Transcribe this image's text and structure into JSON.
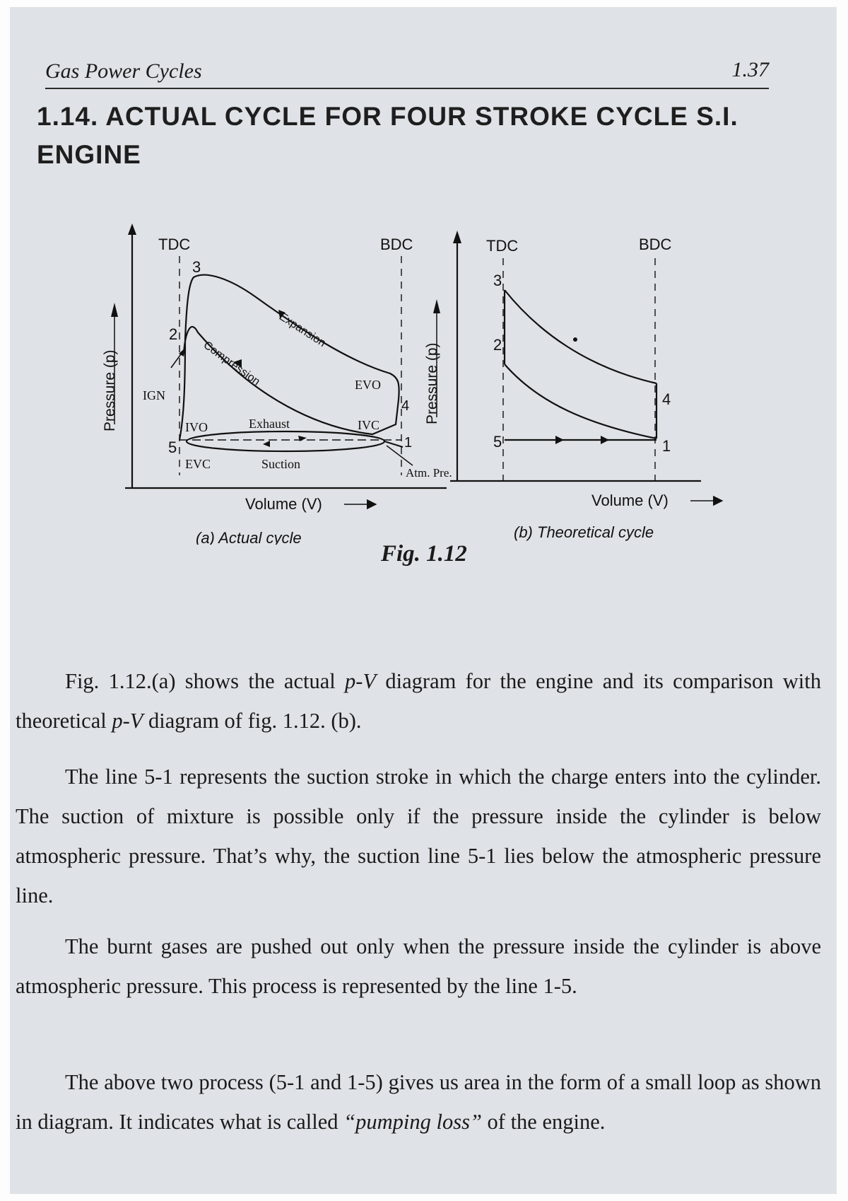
{
  "header": {
    "running_title": "Gas Power Cycles",
    "page_number": "1.37"
  },
  "section": {
    "number": "1.14.",
    "title": "ACTUAL CYCLE FOR FOUR STROKE CYCLE S.I. ENGINE"
  },
  "figure": {
    "caption": "Fig. 1.12",
    "actual": {
      "subcaption": "(a) Actual cycle",
      "y_label": "Pressure (p)",
      "x_label": "Volume (V)",
      "tdc": "TDC",
      "bdc": "BDC",
      "points": {
        "p1": "1",
        "p2": "2",
        "p3": "3",
        "p4": "4",
        "p5": "5"
      },
      "labels": {
        "expansion": "Expansion",
        "compression": "Compression",
        "exhaust": "Exhaust",
        "suction": "Suction",
        "ign": "IGN",
        "ivo": "IVO",
        "evc": "EVC",
        "evo": "EVO",
        "ivc": "IVC",
        "atm": "Atm. Pre."
      }
    },
    "theoretical": {
      "subcaption": "(b) Theoretical cycle",
      "y_label": "Pressure (p)",
      "x_label": "Volume (V)",
      "tdc": "TDC",
      "bdc": "BDC",
      "points": {
        "p1": "1",
        "p2": "2",
        "p3": "3",
        "p4": "4",
        "p5": "5"
      }
    }
  },
  "body": {
    "p1_a": "Fig. 1.12.(a) shows the actual ",
    "p1_b": "p-V",
    "p1_c": " diagram for the engine and its comparison with theoretical ",
    "p1_d": "p-V",
    "p1_e": " diagram of fig. 1.12. (b).",
    "p2": "The line 5-1 represents the suction stroke in which the charge enters into the cylinder. The suction of mixture is possible only if the pressure inside the cylinder is below atmospheric pressure. That’s why, the suction line 5-1 lies below the atmospheric pressure line.",
    "p3": "The burnt gases are pushed out only when the pressure inside the cylinder is above atmospheric pressure. This process is represented by the line 1-5.",
    "p4_a": "The above two process (5-1 and 1-5) gives us area in the form of a small loop as shown in diagram. It indicates what is called ",
    "p4_b": "“pumping loss”",
    "p4_c": " of the engine."
  },
  "colors": {
    "page": "#dfe2e6",
    "ink": "#1a1a1a"
  }
}
